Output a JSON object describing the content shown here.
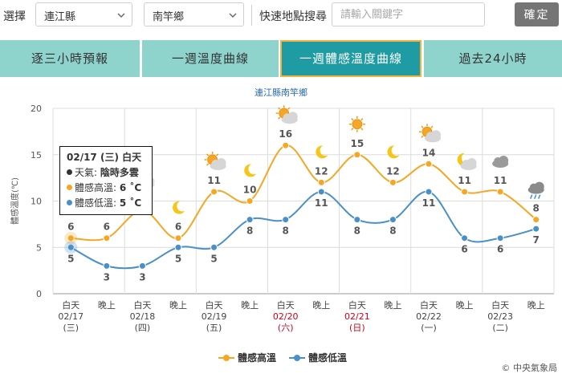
{
  "toolbar": {
    "select_label": "選擇",
    "county_value": "連江縣",
    "township_value": "南竿鄉",
    "search_label": "快速地點搜尋",
    "search_placeholder": "請輸入關鍵字",
    "confirm_label": "確定"
  },
  "tabs": [
    {
      "label": "逐三小時預報",
      "active": false
    },
    {
      "label": "一週溫度曲線",
      "active": false
    },
    {
      "label": "一週體感溫度曲線",
      "active": true
    },
    {
      "label": "過去24小時",
      "active": false
    }
  ],
  "tooltip": {
    "title": "02/17 (三) 白天",
    "weather_label": "天氣: ",
    "weather_value": "陰時多雲",
    "high_label": "體感高溫: ",
    "high_value": "6 ˚C",
    "low_label": "體感低溫: ",
    "low_value": "5 ˚C"
  },
  "copyright": "© 中央氣象局",
  "colors": {
    "high": "#f5a623",
    "low": "#4a90c8",
    "tab_bg": "#8ed3cc",
    "tab_active": "#1f9ba3",
    "tab_border": "#f4b23b",
    "button": "#757575"
  },
  "chart_data": {
    "type": "line",
    "title": "連江縣南竿鄉",
    "ylabel": "體感溫度(℃)",
    "ylim": [
      0,
      20
    ],
    "yticks": [
      0,
      5,
      10,
      15,
      20
    ],
    "categories": [
      {
        "period": "白天",
        "date": "02/17",
        "dow": "(三)",
        "weekend": false
      },
      {
        "period": "晚上",
        "date": "",
        "dow": "",
        "weekend": false
      },
      {
        "period": "白天",
        "date": "02/18",
        "dow": "(四)",
        "weekend": false
      },
      {
        "period": "晚上",
        "date": "",
        "dow": "",
        "weekend": false
      },
      {
        "period": "白天",
        "date": "02/19",
        "dow": "(五)",
        "weekend": false
      },
      {
        "period": "晚上",
        "date": "",
        "dow": "",
        "weekend": false
      },
      {
        "period": "白天",
        "date": "02/20",
        "dow": "(六)",
        "weekend": true
      },
      {
        "period": "晚上",
        "date": "",
        "dow": "",
        "weekend": false
      },
      {
        "period": "白天",
        "date": "02/21",
        "dow": "(日)",
        "weekend": true
      },
      {
        "period": "晚上",
        "date": "",
        "dow": "",
        "weekend": false
      },
      {
        "period": "白天",
        "date": "02/22",
        "dow": "(一)",
        "weekend": false
      },
      {
        "period": "晚上",
        "date": "",
        "dow": "",
        "weekend": false
      },
      {
        "period": "白天",
        "date": "02/23",
        "dow": "(二)",
        "weekend": false
      },
      {
        "period": "晚上",
        "date": "",
        "dow": "",
        "weekend": false
      }
    ],
    "series": [
      {
        "name": "體感高溫",
        "color": "#f5a623",
        "values": [
          6,
          6,
          9,
          6,
          11,
          10,
          16,
          12,
          15,
          12,
          14,
          11,
          11,
          8
        ]
      },
      {
        "name": "體感低溫",
        "color": "#4a90c8",
        "values": [
          5,
          3,
          3,
          5,
          5,
          8,
          8,
          11,
          8,
          8,
          11,
          6,
          6,
          7
        ]
      }
    ],
    "weather_icons": [
      "cloud-icon",
      "moon-icon",
      "sun-cloud-icon",
      "moon-icon",
      "sun-cloud-icon",
      "moon-icon",
      "sun-cloud-icon",
      "moon-icon",
      "sun-icon",
      "moon-icon",
      "sun-cloud-icon",
      "moon-cloud-icon",
      "cloud-icon",
      "rain-icon"
    ],
    "grid": true,
    "legend": "bottom-center"
  }
}
